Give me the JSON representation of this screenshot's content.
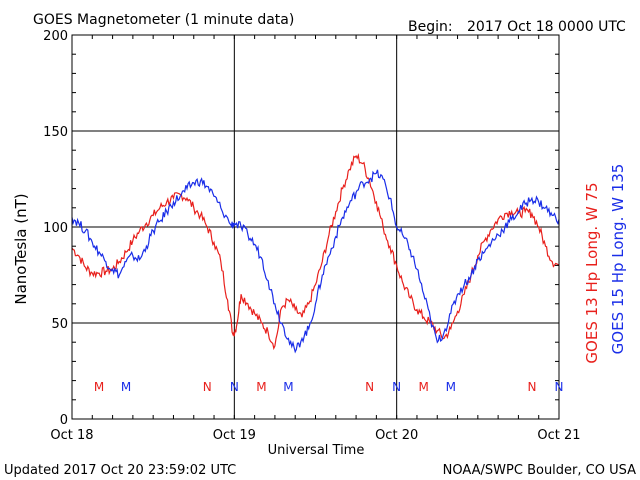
{
  "header": {
    "title": "GOES Magnetometer (1 minute data)",
    "begin_label": "Begin:",
    "begin_value": "2017 Oct 18 0000 UTC"
  },
  "footer": {
    "updated": "Updated 2017 Oct 20 23:59:02 UTC",
    "credit": "NOAA/SWPC Boulder, CO USA"
  },
  "chart_data": {
    "type": "line",
    "ylabel": "NanoTesla (nT)",
    "xlabel": "Universal Time",
    "ylim": [
      0,
      200
    ],
    "xlim": [
      0,
      72
    ],
    "x_unit": "hours since 2017 Oct 18 00 UTC",
    "yticks": [
      0,
      50,
      100,
      150,
      200
    ],
    "xticks": [
      {
        "x": 0,
        "label": "Oct 18"
      },
      {
        "x": 24,
        "label": "Oct 19"
      },
      {
        "x": 48,
        "label": "Oct 20"
      },
      {
        "x": 72,
        "label": "Oct 21"
      }
    ],
    "grid": true,
    "series": [
      {
        "name": "GOES 13 Hp",
        "legend_text": "GOES 13 Hp  Long. W 75",
        "color": "#e8201c",
        "points": [
          [
            0,
            89
          ],
          [
            1,
            85
          ],
          [
            2,
            79
          ],
          [
            3,
            76
          ],
          [
            4,
            76
          ],
          [
            5,
            77
          ],
          [
            6,
            78
          ],
          [
            7,
            82
          ],
          [
            8,
            87
          ],
          [
            9,
            93
          ],
          [
            10,
            98
          ],
          [
            11,
            102
          ],
          [
            12,
            106
          ],
          [
            13,
            110
          ],
          [
            14,
            113
          ],
          [
            15,
            115
          ],
          [
            16,
            117
          ],
          [
            17,
            115
          ],
          [
            18,
            110
          ],
          [
            19,
            106
          ],
          [
            20,
            100
          ],
          [
            21,
            92
          ],
          [
            22,
            82
          ],
          [
            23,
            62
          ],
          [
            23.8,
            44
          ],
          [
            24.3,
            48
          ],
          [
            25,
            65
          ],
          [
            26,
            60
          ],
          [
            27,
            55
          ],
          [
            28,
            50
          ],
          [
            29,
            45
          ],
          [
            30,
            38
          ],
          [
            31,
            58
          ],
          [
            32,
            62
          ],
          [
            33,
            57
          ],
          [
            34,
            53
          ],
          [
            35,
            60
          ],
          [
            36,
            70
          ],
          [
            37,
            82
          ],
          [
            38,
            96
          ],
          [
            39,
            108
          ],
          [
            40,
            120
          ],
          [
            41,
            130
          ],
          [
            42,
            137
          ],
          [
            43,
            133
          ],
          [
            44,
            124
          ],
          [
            45,
            113
          ],
          [
            46,
            100
          ],
          [
            47,
            90
          ],
          [
            48,
            80
          ],
          [
            49,
            70
          ],
          [
            50,
            63
          ],
          [
            51,
            57
          ],
          [
            52,
            53
          ],
          [
            53,
            50
          ],
          [
            54,
            46
          ],
          [
            55,
            42
          ],
          [
            56,
            47
          ],
          [
            57,
            56
          ],
          [
            58,
            65
          ],
          [
            59,
            75
          ],
          [
            60,
            85
          ],
          [
            61,
            93
          ],
          [
            62,
            99
          ],
          [
            63,
            104
          ],
          [
            64,
            107
          ],
          [
            65,
            108
          ],
          [
            66,
            107
          ],
          [
            67,
            108
          ],
          [
            68,
            107
          ],
          [
            69,
            100
          ],
          [
            70,
            90
          ],
          [
            71,
            82
          ],
          [
            72,
            80
          ]
        ]
      },
      {
        "name": "GOES 15 Hp",
        "legend_text": "GOES 15 Hp  Long. W 135",
        "color": "#1a2ee8",
        "points": [
          [
            0,
            105
          ],
          [
            1,
            102
          ],
          [
            2,
            98
          ],
          [
            3,
            92
          ],
          [
            4,
            87
          ],
          [
            5,
            82
          ],
          [
            6,
            78
          ],
          [
            7,
            75
          ],
          [
            8,
            82
          ],
          [
            9,
            85
          ],
          [
            10,
            83
          ],
          [
            11,
            90
          ],
          [
            12,
            98
          ],
          [
            13,
            103
          ],
          [
            14,
            108
          ],
          [
            15,
            113
          ],
          [
            16,
            116
          ],
          [
            17,
            120
          ],
          [
            18,
            123
          ],
          [
            19,
            124
          ],
          [
            20,
            121
          ],
          [
            21,
            116
          ],
          [
            22,
            110
          ],
          [
            23.5,
            101
          ],
          [
            24,
            102
          ],
          [
            25,
            100
          ],
          [
            26,
            96
          ],
          [
            27,
            91
          ],
          [
            28,
            84
          ],
          [
            29,
            72
          ],
          [
            30,
            60
          ],
          [
            31,
            50
          ],
          [
            32,
            42
          ],
          [
            33,
            35
          ],
          [
            34,
            42
          ],
          [
            35,
            47
          ],
          [
            36,
            60
          ],
          [
            37,
            75
          ],
          [
            38,
            85
          ],
          [
            39,
            95
          ],
          [
            40,
            105
          ],
          [
            41,
            112
          ],
          [
            42,
            118
          ],
          [
            43,
            123
          ],
          [
            44,
            125
          ],
          [
            45,
            128
          ],
          [
            46,
            125
          ],
          [
            47,
            115
          ],
          [
            48,
            100
          ],
          [
            49,
            95
          ],
          [
            50,
            88
          ],
          [
            51,
            78
          ],
          [
            52,
            65
          ],
          [
            53,
            52
          ],
          [
            54,
            40
          ],
          [
            55,
            45
          ],
          [
            56,
            55
          ],
          [
            57,
            65
          ],
          [
            58,
            70
          ],
          [
            59,
            75
          ],
          [
            60,
            83
          ],
          [
            61,
            87
          ],
          [
            62,
            92
          ],
          [
            63,
            96
          ],
          [
            64,
            100
          ],
          [
            65,
            104
          ],
          [
            66,
            108
          ],
          [
            67,
            112
          ],
          [
            68,
            115
          ],
          [
            69,
            113
          ],
          [
            70,
            110
          ],
          [
            71,
            106
          ],
          [
            72,
            104
          ]
        ]
      }
    ],
    "annotations": [
      {
        "x": 4,
        "text": "M",
        "series": "GOES 13 Hp"
      },
      {
        "x": 8,
        "text": "M",
        "series": "GOES 15 Hp"
      },
      {
        "x": 20,
        "text": "N",
        "series": "GOES 13 Hp"
      },
      {
        "x": 24,
        "text": "N",
        "series": "GOES 15 Hp"
      },
      {
        "x": 28,
        "text": "M",
        "series": "GOES 13 Hp"
      },
      {
        "x": 32,
        "text": "M",
        "series": "GOES 15 Hp"
      },
      {
        "x": 44,
        "text": "N",
        "series": "GOES 13 Hp"
      },
      {
        "x": 48,
        "text": "N",
        "series": "GOES 15 Hp"
      },
      {
        "x": 52,
        "text": "M",
        "series": "GOES 13 Hp"
      },
      {
        "x": 56,
        "text": "M",
        "series": "GOES 15 Hp"
      },
      {
        "x": 68,
        "text": "N",
        "series": "GOES 13 Hp"
      },
      {
        "x": 72,
        "text": "N",
        "series": "GOES 15 Hp"
      }
    ]
  }
}
